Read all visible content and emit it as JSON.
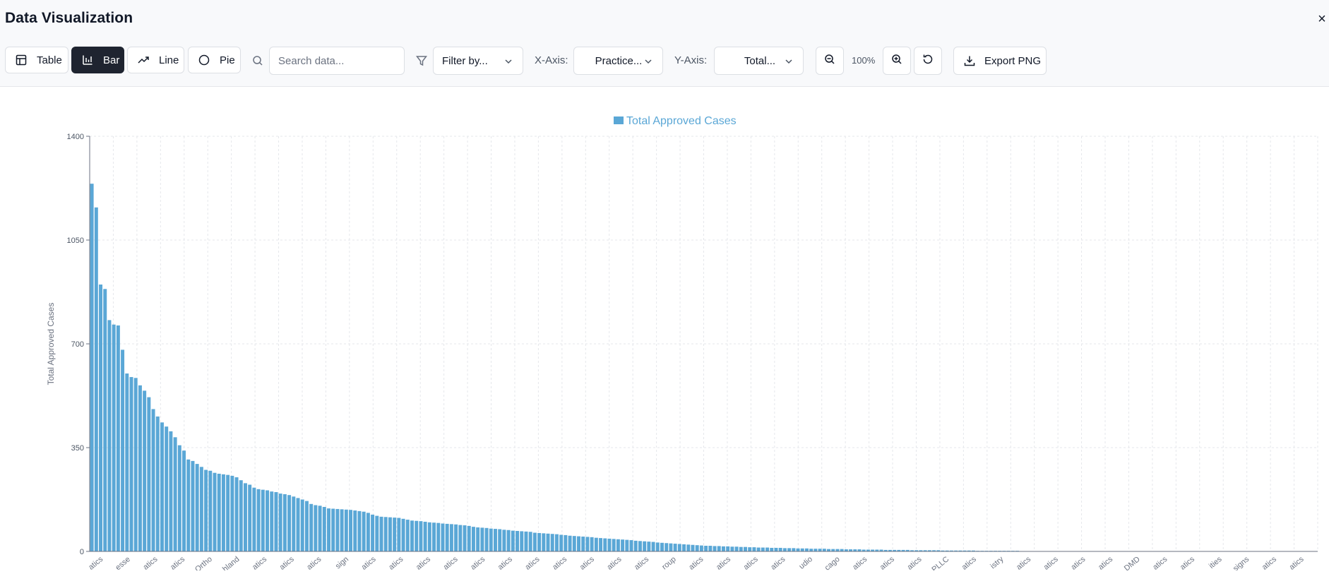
{
  "window": {
    "title": "Data Visualization",
    "close_label": "×"
  },
  "toolbar": {
    "view_buttons": [
      {
        "label": "Table",
        "icon": "table-icon"
      },
      {
        "label": "Bar",
        "icon": "bar-chart-icon",
        "active": true
      },
      {
        "label": "Line",
        "icon": "trend-line-icon"
      },
      {
        "label": "Pie",
        "icon": "circle-icon"
      }
    ],
    "search": {
      "placeholder": "Search data...",
      "value": ""
    },
    "filter": {
      "value": "Filter by..."
    },
    "x_axis": {
      "label": "X-Axis:",
      "value": "Practice..."
    },
    "y_axis": {
      "label": "Y-Axis:",
      "value": "Total..."
    },
    "zoom": {
      "level": "100%"
    },
    "export_label": "Export PNG"
  },
  "colors": {
    "bar": "#5aa7d6",
    "active_button": "#1f2430",
    "legend_text": "#5aa7d6"
  },
  "chart_data": {
    "type": "bar",
    "legend": [
      "Total Approved Cases"
    ],
    "legend_position": "top-center",
    "ylabel": "Total Approved Cases",
    "ylim": [
      0,
      1400
    ],
    "yticks": [
      0,
      350,
      700,
      1050,
      1400
    ],
    "grid": true,
    "x_tick_labels_visible": [
      "atics",
      "esse",
      "atics",
      "atics",
      "Ortho",
      "hland",
      "atics",
      "atics",
      "atics",
      "sign",
      "atics",
      "atics",
      "atics",
      "atics",
      "atics",
      "atics",
      "atics",
      "atics",
      "atics",
      "atics",
      "atics",
      "roup",
      "atics",
      "atics",
      "atics",
      "atics",
      "udio",
      "cago",
      "atics",
      "atics",
      "atics",
      "PLLC",
      "atics",
      "istry",
      "atics",
      "atics",
      "atics",
      "atics",
      "DMD",
      "atics",
      "atics",
      "ities",
      "signs",
      "atics",
      "atics"
    ],
    "series": [
      {
        "name": "Total Approved Cases",
        "values": [
          1240,
          1160,
          900,
          885,
          780,
          765,
          762,
          680,
          600,
          588,
          585,
          560,
          542,
          520,
          480,
          455,
          435,
          421,
          405,
          385,
          358,
          340,
          310,
          305,
          295,
          285,
          275,
          272,
          265,
          262,
          260,
          258,
          255,
          250,
          240,
          230,
          225,
          215,
          210,
          208,
          206,
          202,
          200,
          195,
          193,
          190,
          185,
          180,
          175,
          170,
          160,
          156,
          154,
          150,
          145,
          144,
          143,
          142,
          141,
          140,
          138,
          136,
          134,
          130,
          124,
          120,
          117,
          116,
          115,
          114,
          113,
          110,
          107,
          104,
          103,
          102,
          100,
          98,
          97,
          96,
          94,
          93,
          92,
          91,
          89,
          88,
          86,
          83,
          81,
          80,
          79,
          77,
          76,
          75,
          73,
          72,
          70,
          69,
          68,
          67,
          66,
          63,
          62,
          61,
          60,
          59,
          58,
          56,
          55,
          53,
          52,
          51,
          50,
          49,
          48,
          46,
          45,
          44,
          43,
          42,
          41,
          40,
          39,
          38,
          36,
          35,
          34,
          33,
          32,
          30,
          29,
          28,
          27,
          26,
          25,
          24,
          23,
          22,
          21,
          20,
          19,
          19,
          18,
          18,
          17,
          17,
          16,
          16,
          15,
          15,
          14,
          14,
          13,
          13,
          13,
          12,
          12,
          12,
          11,
          11,
          11,
          10,
          10,
          10,
          9,
          9,
          9,
          9,
          8,
          8,
          8,
          8,
          7,
          7,
          7,
          7,
          6,
          6,
          6,
          6,
          6,
          5,
          5,
          5,
          5,
          5,
          5,
          4,
          4,
          4,
          4,
          4,
          4,
          4,
          3,
          3,
          3,
          3,
          3,
          3,
          3,
          3,
          2,
          2,
          2,
          2,
          2,
          2,
          2,
          2,
          2,
          2,
          1,
          1,
          1,
          1,
          1,
          1,
          1,
          1,
          1,
          1,
          1,
          1,
          1,
          1,
          1,
          1,
          1,
          1,
          1,
          1,
          1,
          1,
          1,
          1,
          0,
          0,
          0,
          0,
          0,
          0,
          0,
          0,
          0,
          0,
          0,
          0,
          0,
          0,
          0,
          0,
          0,
          0,
          0,
          0,
          0,
          0,
          0,
          0,
          0,
          0,
          0,
          0,
          0,
          0,
          0,
          0,
          0,
          0,
          0,
          0,
          0,
          0,
          0,
          0,
          0,
          0,
          0,
          0
        ]
      }
    ]
  }
}
